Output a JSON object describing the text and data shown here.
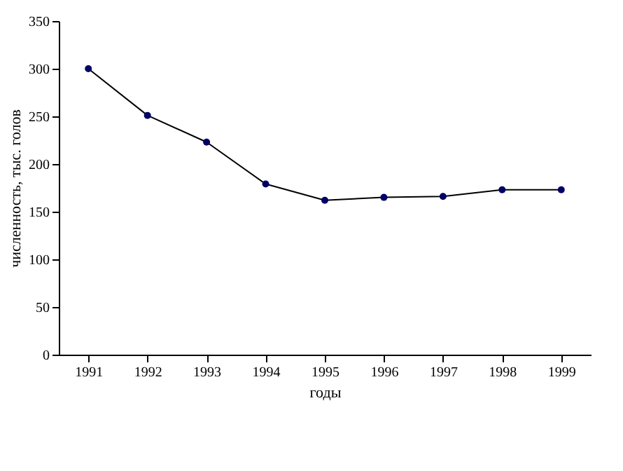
{
  "chart_data": {
    "type": "line",
    "xlabel": "годы",
    "ylabel": "численность, тыс. голов",
    "categories": [
      "1991",
      "1992",
      "1993",
      "1994",
      "1995",
      "1996",
      "1997",
      "1998",
      "1999"
    ],
    "series": [
      {
        "color": "#000066",
        "values": [
          300,
          251,
          223,
          179,
          162,
          165,
          166,
          173,
          173
        ]
      }
    ],
    "ylim": [
      0,
      350
    ],
    "yticks": [
      0,
      50,
      100,
      150,
      200,
      250,
      300,
      350
    ],
    "grid": false,
    "marker": "circle",
    "line_style": "solid"
  }
}
